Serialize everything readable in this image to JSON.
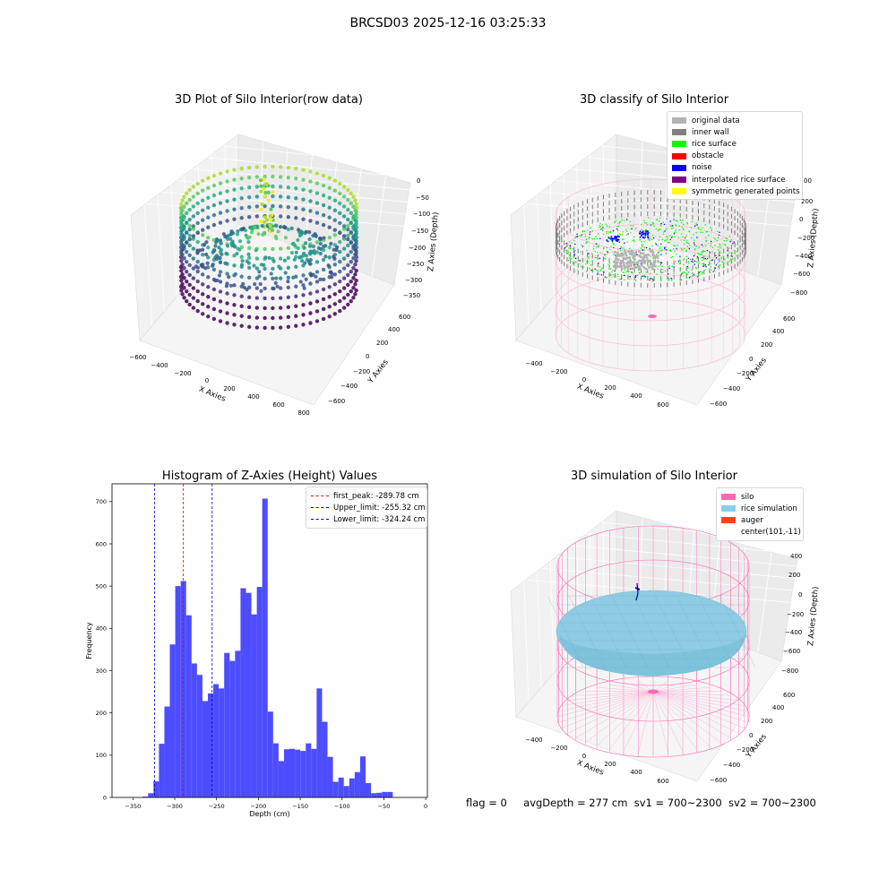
{
  "figure": {
    "suptitle": "BRCSD03 2025-12-16 03:25:33",
    "status": {
      "flag": "flag = 0",
      "avg_depth": "avgDepth = 277 cm",
      "sv1": "sv1 = 700~2300",
      "sv2": "sv2 = 700~2300"
    }
  },
  "colors": {
    "histogram": "#4d4dff",
    "first_peak": "#ff0000",
    "limits": "#0000cc",
    "original_data": "#b3b3b3",
    "inner_wall": "#808080",
    "rice_surface": "#00ff00",
    "obstacle": "#ff0000",
    "noise": "#0000ff",
    "interpolated_rice_surface": "#800080",
    "symmetric_generated_points": "#ffff00",
    "silo": "#ff69b4",
    "rice_simulation": "#87ceeb",
    "auger": "#ff4500"
  },
  "plot_raw": {
    "title": "3D Plot of Silo Interior(row data)",
    "x_label": "X Axies",
    "y_label": "Y Axies",
    "z_label": "Z Axies (Depth)",
    "x_ticks": [
      "−600",
      "−400",
      "−200",
      "0",
      "200",
      "400",
      "600",
      "800"
    ],
    "y_ticks": [
      "−600",
      "−400",
      "−200",
      "0",
      "200",
      "400",
      "600"
    ],
    "z_ticks": [
      "0",
      "−50",
      "−100",
      "−150",
      "−200",
      "−250",
      "−300",
      "−350"
    ]
  },
  "plot_classify": {
    "title": "3D classify of Silo Interior",
    "x_label": "X Axies",
    "y_label": "Y Axies",
    "z_label": "Z Axies (Depth)",
    "x_ticks": [
      "−400",
      "−200",
      "0",
      "200",
      "400",
      "600"
    ],
    "y_ticks": [
      "−600",
      "−400",
      "−200",
      "0",
      "200",
      "400",
      "600"
    ],
    "z_ticks": [
      "200",
      "0",
      "−200",
      "−400",
      "−600",
      "−800"
    ],
    "z_top_partial": "00",
    "legend": [
      "original data",
      "inner wall",
      "rice surface",
      "obstacle",
      "noise",
      "interpolated rice surface",
      "symmetric generated points"
    ]
  },
  "plot_sim": {
    "title": "3D simulation of Silo Interior",
    "x_label": "X Axies",
    "y_label": "Y Axies",
    "z_label": "Z Axies (Depth)",
    "x_ticks": [
      "−400",
      "−200",
      "0",
      "200",
      "400",
      "600"
    ],
    "y_ticks": [
      "−600",
      "−400",
      "−200",
      "0",
      "200",
      "400",
      "600"
    ],
    "z_ticks": [
      "400",
      "200",
      "0",
      "−200",
      "−400",
      "−600",
      "−800"
    ],
    "legend": [
      "silo",
      "rice simulation",
      "auger",
      "center(101,-11)"
    ]
  },
  "chart_data": [
    {
      "type": "bar",
      "title": "Histogram of Z-Axies (Height) Values",
      "xlabel": "Depth (cm)",
      "ylabel": "Frequency",
      "xlim": [
        -375,
        2
      ],
      "ylim": [
        0,
        742
      ],
      "x_ticks": [
        -350,
        -300,
        -250,
        -200,
        -150,
        -100,
        -50,
        0
      ],
      "x_tick_labels": [
        "−350",
        "−300",
        "−250",
        "−200",
        "−150",
        "−100",
        "−50",
        "0"
      ],
      "y_ticks": [
        0,
        100,
        200,
        300,
        400,
        500,
        600,
        700
      ],
      "bin_width": 6.5,
      "bins_start": [
        -338.4,
        -331.9,
        -325.4,
        -318.9,
        -312.4,
        -305.9,
        -299.4,
        -292.9,
        -286.4,
        -279.9,
        -273.4,
        -266.9,
        -260.4,
        -253.9,
        -247.4,
        -240.9,
        -234.4,
        -227.9,
        -221.4,
        -214.9,
        -208.4,
        -201.9,
        -195.4,
        -188.9,
        -182.4,
        -175.9,
        -169.4,
        -162.9,
        -156.4,
        -149.9,
        -143.4,
        -136.9,
        -130.4,
        -123.9,
        -117.4,
        -110.9,
        -104.4,
        -97.9,
        -91.4,
        -84.9,
        -78.4,
        -71.9,
        -65.4,
        -58.9,
        -52.4,
        -45.9,
        -39.4,
        -32.9,
        -26.4,
        -19.9
      ],
      "values": [
        2,
        10,
        38,
        127,
        215,
        362,
        500,
        512,
        431,
        317,
        290,
        228,
        246,
        268,
        258,
        342,
        323,
        347,
        495,
        484,
        433,
        498,
        707,
        203,
        128,
        86,
        114,
        115,
        113,
        110,
        128,
        115,
        258,
        179,
        96,
        37,
        47,
        27,
        45,
        60,
        97,
        34,
        10,
        11,
        13,
        13,
        0,
        0,
        0,
        0
      ],
      "vlines": [
        {
          "label": "first_peak: -289.78 cm",
          "x": -289.78,
          "color": "#ff0000"
        },
        {
          "label": "Upper_limit: -255.32 cm",
          "x": -255.32,
          "color": "#0000cc"
        },
        {
          "label": "Lower_limit: -324.24 cm",
          "x": -324.24,
          "color": "#0000cc"
        }
      ],
      "legend_position": "top-right"
    }
  ]
}
